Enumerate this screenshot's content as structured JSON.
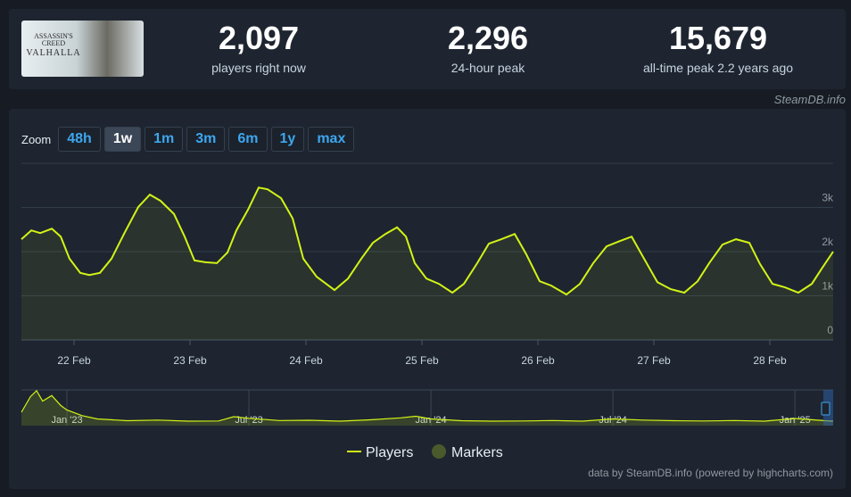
{
  "header": {
    "game_art": [
      "ASSASSIN'S",
      "CREED",
      "VALHALLA"
    ],
    "stats": [
      {
        "value": "2,097",
        "label": "players right now"
      },
      {
        "value": "2,296",
        "label": "24-hour peak"
      },
      {
        "value": "15,679",
        "label": "all-time peak 2.2 years ago"
      }
    ],
    "source": "SteamDB.info"
  },
  "zoom": {
    "label": "Zoom",
    "buttons": [
      "48h",
      "1w",
      "1m",
      "3m",
      "6m",
      "1y",
      "max"
    ],
    "active": "1w"
  },
  "chart_data": [
    {
      "type": "line",
      "grid": true,
      "x": [
        21.546,
        21.631,
        21.708,
        21.808,
        21.885,
        21.961,
        22.054,
        22.131,
        22.223,
        22.323,
        22.438,
        22.554,
        22.654,
        22.746,
        22.862,
        22.954,
        23.038,
        23.131,
        23.231,
        23.323,
        23.4,
        23.5,
        23.592,
        23.669,
        23.785,
        23.885,
        23.977,
        24.092,
        24.246,
        24.362,
        24.477,
        24.577,
        24.685,
        24.785,
        24.862,
        24.938,
        25.038,
        25.146,
        25.262,
        25.362,
        25.477,
        25.577,
        25.685,
        25.8,
        25.9,
        26.015,
        26.115,
        26.246,
        26.362,
        26.477,
        26.592,
        26.708,
        26.808,
        26.915,
        27.031,
        27.146,
        27.262,
        27.377,
        27.477,
        27.592,
        27.708,
        27.823,
        27.915,
        28.023,
        28.131,
        28.246,
        28.362,
        28.454,
        28.546
      ],
      "series": [
        {
          "name": "Players",
          "color": "#d2f316",
          "values": [
            2280,
            2480,
            2420,
            2520,
            2340,
            1840,
            1520,
            1470,
            1520,
            1840,
            2440,
            3010,
            3290,
            3150,
            2850,
            2340,
            1800,
            1760,
            1740,
            1980,
            2480,
            2950,
            3450,
            3410,
            3210,
            2750,
            1840,
            1430,
            1130,
            1390,
            1840,
            2200,
            2400,
            2550,
            2340,
            1740,
            1390,
            1270,
            1070,
            1270,
            1740,
            2180,
            2280,
            2400,
            1940,
            1330,
            1230,
            1030,
            1270,
            1740,
            2120,
            2240,
            2340,
            1840,
            1310,
            1150,
            1070,
            1330,
            1740,
            2160,
            2280,
            2200,
            1720,
            1270,
            1190,
            1070,
            1270,
            1640,
            2000
          ]
        }
      ],
      "markers": {
        "name": "Markers",
        "color": "#4b5a2c"
      },
      "xlim": [
        21.546,
        28.546
      ],
      "xticks": [
        {
          "value": 22,
          "label": "22 Feb"
        },
        {
          "value": 23,
          "label": "23 Feb"
        },
        {
          "value": 24,
          "label": "24 Feb"
        },
        {
          "value": 25,
          "label": "25 Feb"
        },
        {
          "value": 26,
          "label": "26 Feb"
        },
        {
          "value": 27,
          "label": "27 Feb"
        },
        {
          "value": 28,
          "label": "28 Feb"
        }
      ],
      "ylim": [
        0,
        4000
      ],
      "yticks": [
        0,
        {
          "value": 1000,
          "label": "1k"
        },
        {
          "value": 2000,
          "label": "2k"
        },
        {
          "value": 3000,
          "label": "3k"
        }
      ]
    },
    {
      "type": "navigator",
      "color": "#d2f316",
      "x": [
        -1.5,
        -1.2,
        -1,
        -0.8,
        -0.5,
        -0.2,
        0,
        0.5,
        1,
        2,
        3,
        4,
        5,
        5.5,
        6,
        7,
        8,
        9,
        10,
        11,
        11.5,
        12,
        13,
        14,
        15,
        16,
        17,
        18,
        19,
        20,
        21,
        22,
        23,
        24,
        25,
        25.26
      ],
      "values": [
        6000,
        13000,
        15679,
        11000,
        13500,
        9000,
        7000,
        4500,
        3000,
        2200,
        2500,
        2000,
        2100,
        4000,
        3300,
        2300,
        2400,
        2000,
        2600,
        3500,
        4200,
        3000,
        2200,
        2000,
        2100,
        2300,
        2000,
        3000,
        2500,
        2200,
        2100,
        2300,
        2000,
        3200,
        2200,
        2000
      ],
      "xlim": [
        -1.5,
        25.26
      ],
      "ylim": [
        0,
        16000
      ],
      "xticks": [
        {
          "value": 0,
          "label": "Jan '23"
        },
        {
          "value": 6,
          "label": "Jul '23"
        },
        {
          "value": 12,
          "label": "Jan '24"
        },
        {
          "value": 18,
          "label": "Jul '24"
        },
        {
          "value": 24,
          "label": "Jan '25"
        }
      ]
    }
  ],
  "credits": "data by SteamDB.info (powered by highcharts.com)"
}
